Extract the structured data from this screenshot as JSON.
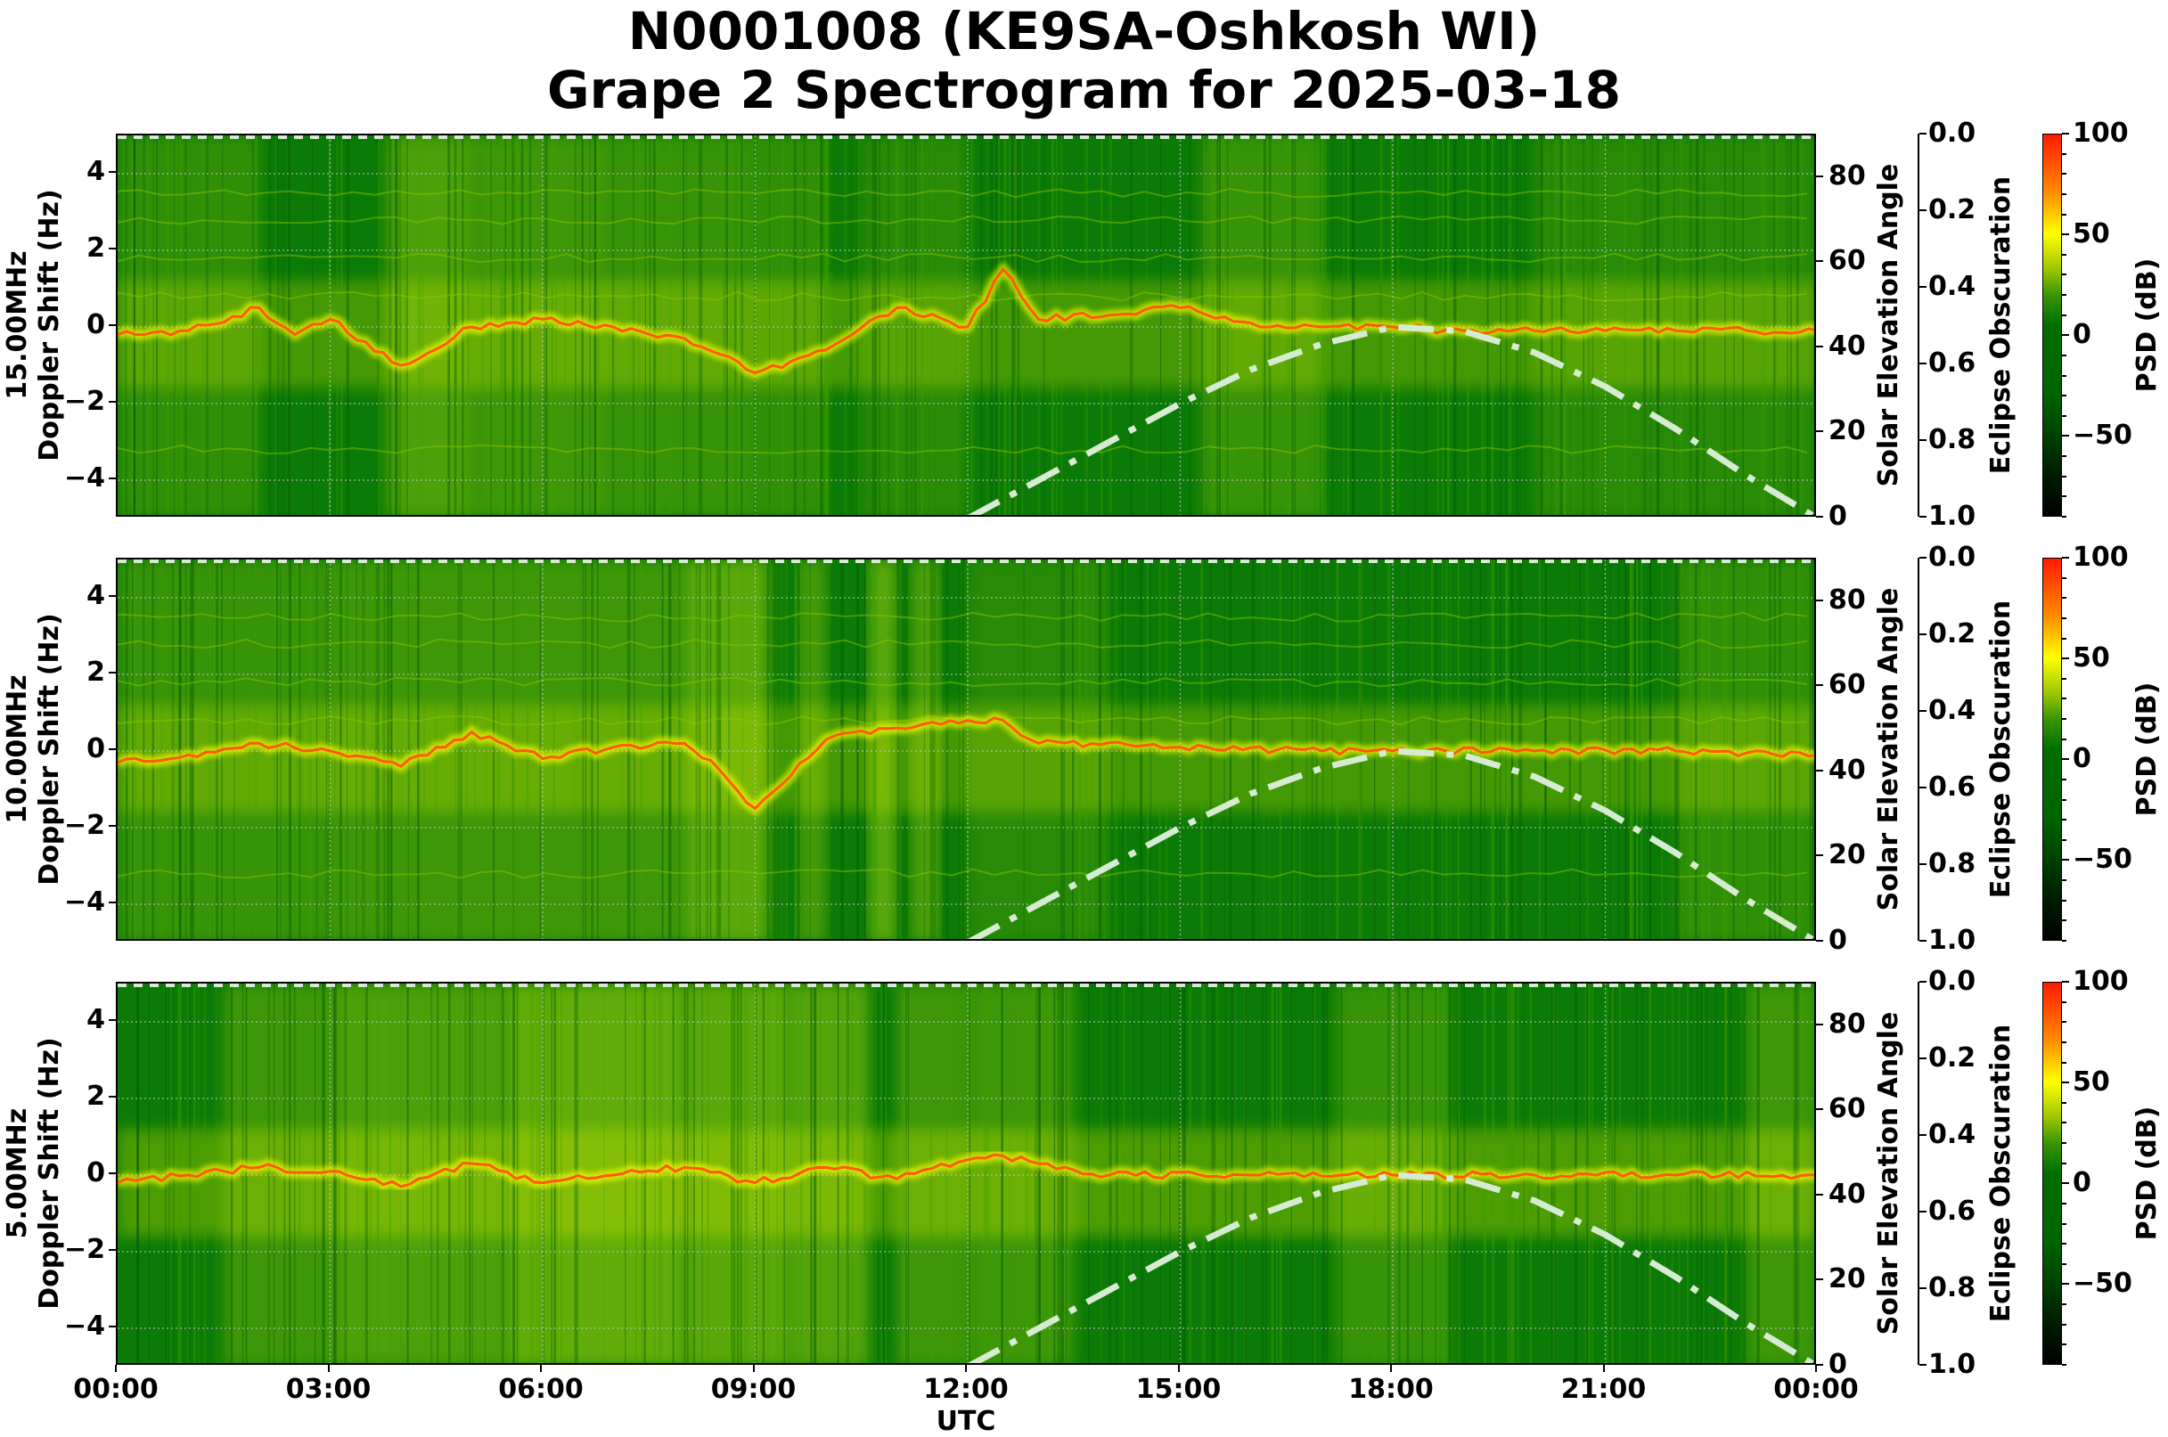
{
  "title": {
    "line1": "N0001008 (KE9SA-Oshkosh WI)",
    "line2": "Grape 2 Spectrogram for 2025-03-18"
  },
  "colors": {
    "background_green": "#0b7a06",
    "signal_yellow": "#ffff00",
    "signal_red": "#ff2a00",
    "solar_curve": "#d6ecd2",
    "grid": "#c8c8c8"
  },
  "x_axis": {
    "label": "UTC",
    "ticks": [
      "00:00",
      "03:00",
      "06:00",
      "09:00",
      "12:00",
      "15:00",
      "18:00",
      "21:00",
      "00:00"
    ]
  },
  "panels": [
    {
      "freq_label": "15.00MHz",
      "ylabel": "Doppler Shift (Hz)",
      "yticks": [
        "4",
        "2",
        "0",
        "−2",
        "−4"
      ],
      "solar_label": "Solar Elevation Angle",
      "solar_ticks": [
        "80",
        "60",
        "40",
        "20",
        "0"
      ],
      "eclipse_label": "Eclipse Obscuration",
      "eclipse_ticks": [
        "0.0",
        "0.2",
        "0.4",
        "0.6",
        "0.8",
        "1.0"
      ],
      "cbar_label": "PSD (dB)",
      "cbar_ticks": [
        "100",
        "50",
        "0",
        "−50"
      ]
    },
    {
      "freq_label": "10.00MHz",
      "ylabel": "Doppler Shift (Hz)",
      "yticks": [
        "4",
        "2",
        "0",
        "−2",
        "−4"
      ],
      "solar_label": "Solar Elevation Angle",
      "solar_ticks": [
        "80",
        "60",
        "40",
        "20",
        "0"
      ],
      "eclipse_label": "Eclipse Obscuration",
      "eclipse_ticks": [
        "0.0",
        "0.2",
        "0.4",
        "0.6",
        "0.8",
        "1.0"
      ],
      "cbar_label": "PSD (dB)",
      "cbar_ticks": [
        "100",
        "50",
        "0",
        "−50"
      ]
    },
    {
      "freq_label": "5.00MHz",
      "ylabel": "Doppler Shift (Hz)",
      "yticks": [
        "4",
        "2",
        "0",
        "−2",
        "−4"
      ],
      "solar_label": "Solar Elevation Angle",
      "solar_ticks": [
        "80",
        "60",
        "40",
        "20",
        "0"
      ],
      "eclipse_label": "Eclipse Obscuration",
      "eclipse_ticks": [
        "0.0",
        "0.2",
        "0.4",
        "0.6",
        "0.8",
        "1.0"
      ],
      "cbar_label": "PSD (dB)",
      "cbar_ticks": [
        "100",
        "50",
        "0",
        "−50"
      ]
    }
  ],
  "chart_data": {
    "type": "heatmap",
    "title": "N0001008 (KE9SA-Oshkosh WI) Grape 2 Spectrogram for 2025-03-18",
    "xlabel": "UTC",
    "x_ticks": [
      "00:00",
      "03:00",
      "06:00",
      "09:00",
      "12:00",
      "15:00",
      "18:00",
      "21:00",
      "00:00"
    ],
    "xlim": [
      "00:00",
      "24:00"
    ],
    "subplots": [
      {
        "name": "15.00MHz",
        "ylabel": "Doppler Shift (Hz)",
        "ylim": [
          -5,
          5
        ],
        "yticks": [
          -4,
          -2,
          0,
          2,
          4
        ],
        "doppler_trace_hz": {
          "hours": [
            0,
            1,
            2,
            2.5,
            3,
            4,
            5,
            6,
            7,
            8,
            9,
            10,
            11,
            12,
            12.5,
            13,
            15,
            16,
            17,
            18,
            19,
            20,
            21,
            22,
            23,
            24
          ],
          "values": [
            -0.2,
            -0.1,
            0.5,
            -0.2,
            0.2,
            -1.0,
            0.0,
            0.2,
            0.0,
            -0.3,
            -1.2,
            -0.6,
            0.5,
            0.0,
            1.5,
            0.2,
            0.5,
            0.1,
            0.0,
            0.0,
            -0.1,
            -0.1,
            -0.1,
            -0.1,
            -0.1,
            -0.1
          ]
        }
      },
      {
        "name": "10.00MHz",
        "ylabel": "Doppler Shift (Hz)",
        "ylim": [
          -5,
          5
        ],
        "yticks": [
          -4,
          -2,
          0,
          2,
          4
        ],
        "doppler_trace_hz": {
          "hours": [
            0,
            1,
            2,
            3,
            4,
            5,
            6,
            7,
            8,
            8.5,
            9,
            10,
            11,
            12,
            12.5,
            13,
            15,
            17,
            18,
            20,
            22,
            24
          ],
          "values": [
            -0.3,
            -0.1,
            0.2,
            0.0,
            -0.4,
            0.5,
            -0.2,
            0.1,
            0.2,
            -0.5,
            -1.5,
            0.3,
            0.6,
            0.8,
            0.8,
            0.2,
            0.1,
            0.0,
            0.0,
            0.0,
            0.0,
            -0.1
          ]
        }
      },
      {
        "name": "5.00MHz",
        "ylabel": "Doppler Shift (Hz)",
        "ylim": [
          -5,
          5
        ],
        "yticks": [
          -4,
          -2,
          0,
          2,
          4
        ],
        "doppler_trace_hz": {
          "hours": [
            0,
            1,
            2,
            3,
            4,
            5,
            6,
            7,
            8,
            9,
            10,
            11,
            12,
            12.5,
            13,
            14,
            16,
            18,
            20,
            22,
            24
          ],
          "values": [
            -0.2,
            0.0,
            0.2,
            0.1,
            -0.3,
            0.3,
            -0.2,
            0.0,
            0.2,
            -0.2,
            0.2,
            -0.1,
            0.4,
            0.5,
            0.3,
            0.0,
            0.0,
            0.0,
            0.0,
            0.0,
            0.0
          ]
        }
      }
    ],
    "secondary_axes": {
      "solar_elevation_angle": {
        "ylim": [
          0,
          90
        ],
        "yticks": [
          0,
          20,
          40,
          60,
          80
        ],
        "curve_hours": [
          12,
          13,
          14,
          15,
          16,
          17,
          18,
          19,
          20,
          21,
          22,
          23,
          24
        ],
        "curve_degrees": [
          0,
          9,
          18,
          27,
          35,
          41,
          45,
          44,
          39,
          31,
          21,
          10,
          0
        ]
      },
      "eclipse_obscuration": {
        "ylim": [
          1.0,
          0.0
        ],
        "yticks": [
          0.0,
          0.2,
          0.4,
          0.6,
          0.8,
          1.0
        ]
      }
    },
    "colorbar": {
      "label": "PSD (dB)",
      "range": [
        -90,
        100
      ],
      "ticks": [
        -50,
        0,
        50,
        100
      ],
      "colormap": [
        "#000000",
        "#003d00",
        "#006400",
        "#3a9600",
        "#ffff00",
        "#ff8a00",
        "#ff1a00"
      ]
    },
    "grid": true
  }
}
